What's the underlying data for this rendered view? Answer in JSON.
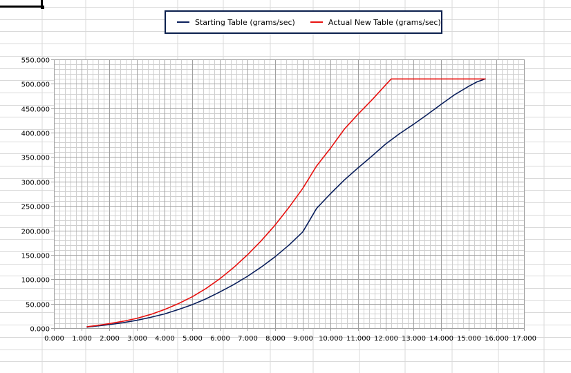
{
  "colors": {
    "starting": "#0a1f5c",
    "actual": "#e8110f",
    "legend_border": "#0a1f4d",
    "major_grid": "#a0a0a0",
    "minor_grid": "#cfcfcf",
    "sheet_grid": "#d9d9d9"
  },
  "chart_data": {
    "type": "line",
    "title": "",
    "xlabel": "",
    "ylabel": "",
    "xlim": [
      0,
      17
    ],
    "ylim": [
      0,
      550
    ],
    "grid": true,
    "legend_position": "top",
    "x_tick_labels": [
      "0.000",
      "1.000",
      "2.000",
      "3.000",
      "4.000",
      "5.000",
      "6.000",
      "7.000",
      "8.000",
      "9.000",
      "10.000",
      "11.000",
      "12.000",
      "13.000",
      "14.000",
      "15.000",
      "16.000",
      "17.000"
    ],
    "y_tick_labels": [
      "0.000",
      "50.000",
      "100.000",
      "150.000",
      "200.000",
      "250.000",
      "300.000",
      "350.000",
      "400.000",
      "450.000",
      "500.000",
      "550.000"
    ],
    "series": [
      {
        "name": "Starting Table (grams/sec)",
        "color": "#0a1f5c",
        "x": [
          1.2,
          1.5,
          2.0,
          2.5,
          3.0,
          3.5,
          4.0,
          4.5,
          5.0,
          5.5,
          6.0,
          6.5,
          7.0,
          7.5,
          8.0,
          8.5,
          9.0,
          9.5,
          10.0,
          10.5,
          11.0,
          11.5,
          12.0,
          12.5,
          13.0,
          13.5,
          14.0,
          14.5,
          15.0,
          15.3,
          15.5,
          15.6
        ],
        "y": [
          2,
          4,
          7,
          11,
          16,
          22,
          29,
          38,
          48,
          60,
          74,
          89,
          106,
          125,
          146,
          170,
          197,
          245,
          275,
          303,
          328,
          352,
          377,
          398,
          417,
          437,
          458,
          478,
          495,
          504,
          508,
          510
        ]
      },
      {
        "name": "Actual New Table (grams/sec)",
        "color": "#e8110f",
        "x": [
          1.2,
          1.5,
          2.0,
          2.5,
          3.0,
          3.5,
          4.0,
          4.5,
          5.0,
          5.5,
          6.0,
          6.5,
          7.0,
          7.5,
          8.0,
          8.5,
          9.0,
          9.5,
          10.0,
          10.5,
          11.0,
          11.5,
          12.0,
          12.2,
          13.0,
          14.0,
          15.0,
          15.6
        ],
        "y": [
          3,
          5,
          9,
          14,
          20,
          28,
          38,
          50,
          64,
          81,
          101,
          124,
          150,
          179,
          211,
          247,
          286,
          332,
          368,
          407,
          438,
          467,
          498,
          510,
          510,
          510,
          510,
          510
        ]
      }
    ]
  }
}
